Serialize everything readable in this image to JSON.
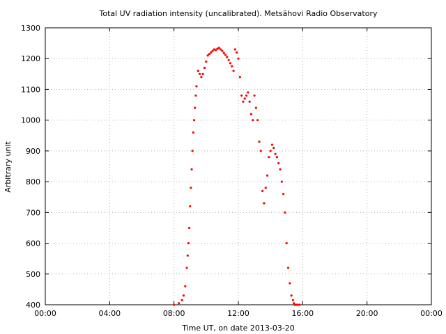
{
  "chart_data": {
    "type": "scatter",
    "title": "Total UV radiation intensity (uncalibrated). Metsähovi Radio Observatory",
    "xlabel": "Time UT, on date 2013-03-20",
    "ylabel": "Arbitrary unit",
    "xlim_hours": [
      0,
      24
    ],
    "ylim": [
      400,
      1300
    ],
    "x_ticks": [
      {
        "value": 0,
        "label": "00:00"
      },
      {
        "value": 4,
        "label": "04:00"
      },
      {
        "value": 8,
        "label": "08:00"
      },
      {
        "value": 12,
        "label": "12:00"
      },
      {
        "value": 16,
        "label": "16:00"
      },
      {
        "value": 20,
        "label": "20:00"
      },
      {
        "value": 24,
        "label": "00:00"
      }
    ],
    "y_ticks": [
      400,
      500,
      600,
      700,
      800,
      900,
      1000,
      1100,
      1200,
      1300
    ],
    "grid": true,
    "marker_color": "#ff0000",
    "series": [
      {
        "x_hours": [
          8.0,
          8.3,
          8.5,
          8.6,
          8.7,
          8.8,
          8.85,
          8.9,
          8.95,
          9.0,
          9.05,
          9.1,
          9.15,
          9.2,
          9.25,
          9.3,
          9.35,
          9.4,
          9.5,
          9.6,
          9.7,
          9.8,
          9.9,
          10.0,
          10.1,
          10.2,
          10.3,
          10.4,
          10.5,
          10.6,
          10.7,
          10.8,
          10.9,
          11.0,
          11.1,
          11.2,
          11.3,
          11.4,
          11.5,
          11.6,
          11.7,
          11.8,
          11.9,
          12.0,
          12.1,
          12.2,
          12.3,
          12.4,
          12.5,
          12.6,
          12.7,
          12.8,
          12.9,
          13.0,
          13.1,
          13.2,
          13.3,
          13.4,
          13.5,
          13.6,
          13.7,
          13.8,
          13.9,
          14.0,
          14.1,
          14.2,
          14.3,
          14.4,
          14.5,
          14.6,
          14.7,
          14.8,
          14.9,
          15.0,
          15.1,
          15.2,
          15.3,
          15.4,
          15.45,
          15.5,
          15.6,
          15.7,
          15.8
        ],
        "y": [
          400,
          405,
          415,
          430,
          460,
          520,
          560,
          600,
          650,
          720,
          780,
          840,
          900,
          960,
          1000,
          1040,
          1080,
          1110,
          1160,
          1150,
          1140,
          1150,
          1170,
          1190,
          1210,
          1215,
          1220,
          1225,
          1230,
          1228,
          1232,
          1235,
          1230,
          1225,
          1218,
          1212,
          1205,
          1195,
          1185,
          1175,
          1160,
          1230,
          1220,
          1200,
          1140,
          1080,
          1060,
          1070,
          1080,
          1090,
          1060,
          1020,
          1000,
          1080,
          1040,
          1000,
          930,
          900,
          770,
          730,
          780,
          820,
          880,
          900,
          920,
          910,
          890,
          880,
          860,
          840,
          800,
          760,
          700,
          600,
          520,
          470,
          430,
          415,
          405,
          400,
          400,
          400,
          400
        ]
      }
    ]
  }
}
